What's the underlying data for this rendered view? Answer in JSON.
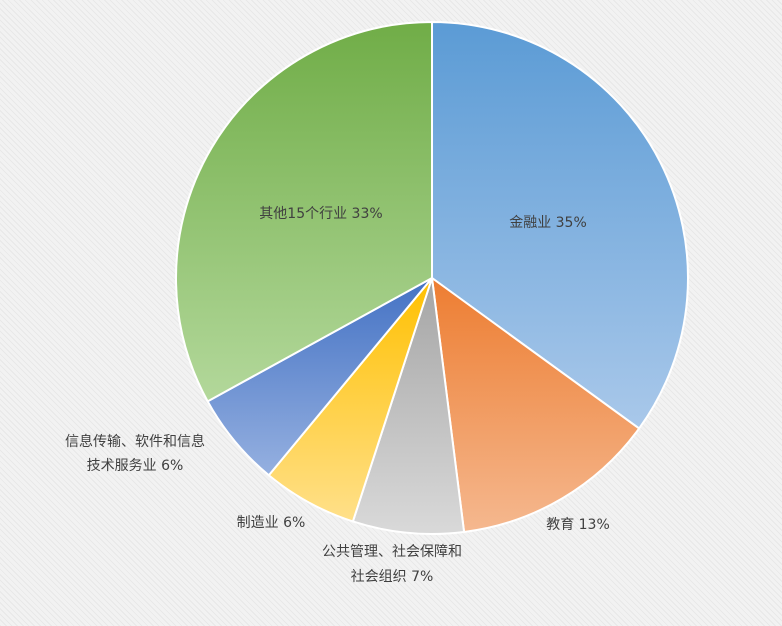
{
  "chart_data": {
    "type": "pie",
    "title": "",
    "start_angle_deg": 0,
    "direction": "clockwise",
    "slices": [
      {
        "label": "金融业 35%",
        "value": 35,
        "color": "#5b9bd5",
        "color_light": "#a9c8ea"
      },
      {
        "label": "教育 13%",
        "value": 13,
        "color": "#ed7d31",
        "color_light": "#f5b88f"
      },
      {
        "label_lines": [
          "公共管理、社会保障和",
          "社会组织 7%"
        ],
        "value": 7,
        "color": "#a5a5a5",
        "color_light": "#d9d9d9"
      },
      {
        "label": "制造业 6%",
        "value": 6,
        "color": "#ffc000",
        "color_light": "#ffe08a"
      },
      {
        "label_lines": [
          "信息传输、软件和信息",
          "技术服务业 6%"
        ],
        "value": 6,
        "color": "#4472c4",
        "color_light": "#95b0e0"
      },
      {
        "label": "其他15个行业 33%",
        "value": 33,
        "color": "#70ad47",
        "color_light": "#b3d89b"
      }
    ]
  }
}
